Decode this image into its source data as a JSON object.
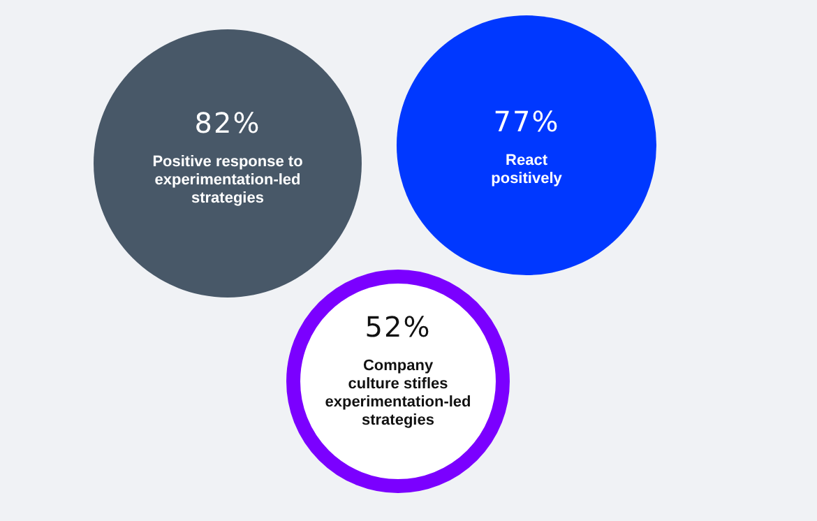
{
  "chart_data": {
    "type": "other",
    "categories": [
      "Positive response to\nexperimentation-led\nstrategies",
      "React\npositively",
      "Company\nculture stifles\nexperimentation-led\nstrategies"
    ],
    "values": [
      82,
      77,
      52
    ],
    "value_labels": [
      "82%",
      "77%",
      "52%"
    ],
    "colors": [
      "#485868",
      "#0038ff",
      "#7b00ff"
    ]
  }
}
